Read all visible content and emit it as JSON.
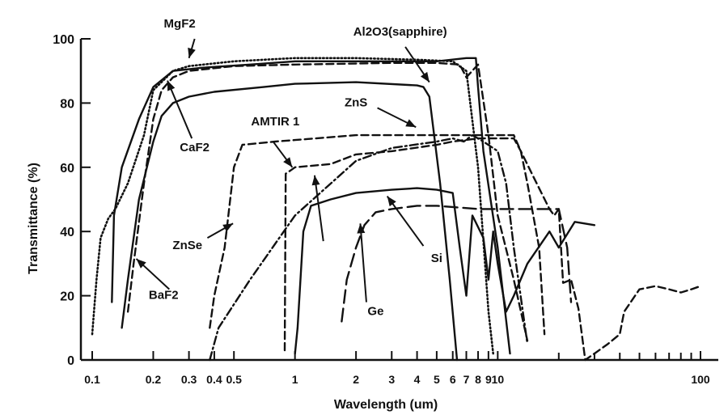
{
  "chart_data": {
    "type": "line",
    "xlabel": "Wavelength (um)",
    "ylabel": "Transmittance (%)",
    "xscale": "log",
    "xlim": [
      0.1,
      100
    ],
    "ylim": [
      0,
      100
    ],
    "grid": false,
    "legend": "none",
    "x_ticks": [
      {
        "value": 0.1,
        "label": "0.1"
      },
      {
        "value": 0.2,
        "label": "0.2"
      },
      {
        "value": 0.3,
        "label": "0.3"
      },
      {
        "value": 0.4,
        "label": "0.4"
      },
      {
        "value": 0.5,
        "label": "0.5"
      },
      {
        "value": 1,
        "label": "1"
      },
      {
        "value": 2,
        "label": "2"
      },
      {
        "value": 3,
        "label": "3"
      },
      {
        "value": 4,
        "label": "4"
      },
      {
        "value": 5,
        "label": "5"
      },
      {
        "value": 6,
        "label": "6"
      },
      {
        "value": 7,
        "label": "7"
      },
      {
        "value": 8,
        "label": "8"
      },
      {
        "value": 9,
        "label": "9"
      },
      {
        "value": 10,
        "label": "10"
      },
      {
        "value": 100,
        "label": "100"
      }
    ],
    "y_ticks": [
      {
        "value": 0,
        "label": "0"
      },
      {
        "value": 20,
        "label": "20"
      },
      {
        "value": 40,
        "label": "40"
      },
      {
        "value": 60,
        "label": "60"
      },
      {
        "value": 80,
        "label": "80"
      },
      {
        "value": 100,
        "label": "100"
      }
    ],
    "series": [
      {
        "name": "MgF2",
        "dash": "dotted",
        "points": [
          [
            0.1,
            8
          ],
          [
            0.105,
            25
          ],
          [
            0.11,
            38
          ],
          [
            0.12,
            44
          ],
          [
            0.13,
            47
          ],
          [
            0.15,
            55
          ],
          [
            0.18,
            70
          ],
          [
            0.2,
            84
          ],
          [
            0.25,
            90
          ],
          [
            0.3,
            91.5
          ],
          [
            0.5,
            93
          ],
          [
            1,
            94
          ],
          [
            2,
            94
          ],
          [
            4,
            93.5
          ],
          [
            6,
            93
          ],
          [
            7,
            90
          ],
          [
            8,
            60
          ],
          [
            9,
            15
          ],
          [
            9.5,
            2
          ]
        ]
      },
      {
        "name": "CaF2",
        "dash": "solid",
        "points": [
          [
            0.125,
            18
          ],
          [
            0.128,
            45
          ],
          [
            0.14,
            60
          ],
          [
            0.17,
            75
          ],
          [
            0.2,
            85
          ],
          [
            0.25,
            90
          ],
          [
            0.35,
            91
          ],
          [
            0.6,
            92
          ],
          [
            1,
            93
          ],
          [
            3,
            93
          ],
          [
            5,
            93
          ],
          [
            7,
            94
          ],
          [
            7.8,
            94
          ],
          [
            8,
            85
          ],
          [
            8.5,
            65
          ],
          [
            10,
            35
          ],
          [
            11.5,
            2
          ]
        ]
      },
      {
        "name": "BaF2",
        "dash": "dashed",
        "points": [
          [
            0.15,
            15
          ],
          [
            0.16,
            30
          ],
          [
            0.18,
            55
          ],
          [
            0.2,
            75
          ],
          [
            0.22,
            84
          ],
          [
            0.25,
            88
          ],
          [
            0.3,
            90
          ],
          [
            0.5,
            91.5
          ],
          [
            1,
            92
          ],
          [
            3,
            92.5
          ],
          [
            5,
            92.5
          ],
          [
            6.5,
            92
          ],
          [
            7,
            88
          ],
          [
            8,
            92
          ],
          [
            9,
            70
          ],
          [
            10,
            45
          ],
          [
            12,
            25
          ],
          [
            14,
            6
          ]
        ]
      },
      {
        "name": "Al2O3(sapphire)",
        "dash": "solid",
        "points": [
          [
            0.14,
            10
          ],
          [
            0.15,
            25
          ],
          [
            0.17,
            50
          ],
          [
            0.2,
            68
          ],
          [
            0.22,
            76
          ],
          [
            0.25,
            80
          ],
          [
            0.3,
            82
          ],
          [
            0.4,
            83.5
          ],
          [
            0.7,
            85
          ],
          [
            1,
            86
          ],
          [
            2,
            86.5
          ],
          [
            4,
            85.5
          ],
          [
            4.3,
            85
          ],
          [
            4.6,
            82
          ],
          [
            5.2,
            55
          ],
          [
            5.8,
            25
          ],
          [
            6.3,
            0
          ]
        ]
      },
      {
        "name": "ZnS",
        "dash": "dash-dot",
        "points": [
          [
            0.38,
            0
          ],
          [
            0.42,
            10
          ],
          [
            0.6,
            25
          ],
          [
            1,
            45
          ],
          [
            2,
            62
          ],
          [
            3,
            66
          ],
          [
            5,
            68
          ],
          [
            6,
            69
          ],
          [
            6.8,
            68
          ],
          [
            7.5,
            70
          ],
          [
            8.5,
            68
          ],
          [
            10,
            65
          ],
          [
            11,
            55
          ],
          [
            12,
            35
          ],
          [
            14,
            5
          ]
        ]
      },
      {
        "name": "ZnSe",
        "dash": "dashed",
        "points": [
          [
            0.38,
            10
          ],
          [
            0.4,
            20
          ],
          [
            0.45,
            35
          ],
          [
            0.5,
            60
          ],
          [
            0.55,
            67
          ],
          [
            0.8,
            68
          ],
          [
            1,
            68.5
          ],
          [
            2,
            70
          ],
          [
            3,
            70
          ],
          [
            5,
            70
          ],
          [
            7,
            70
          ],
          [
            9,
            70
          ],
          [
            12,
            70
          ],
          [
            13,
            65
          ],
          [
            14,
            55
          ],
          [
            16,
            35
          ],
          [
            17,
            8
          ]
        ]
      },
      {
        "name": "AMTIR 1",
        "dash": "dashed",
        "points": [
          [
            0.89,
            3
          ],
          [
            0.9,
            58
          ],
          [
            0.95,
            59
          ],
          [
            1,
            60
          ],
          [
            1.5,
            61
          ],
          [
            2,
            64
          ],
          [
            3,
            65
          ],
          [
            5,
            67
          ],
          [
            6,
            68
          ],
          [
            8,
            69
          ],
          [
            12,
            69
          ],
          [
            13,
            65
          ],
          [
            15,
            57
          ],
          [
            18,
            47
          ],
          [
            19,
            45
          ],
          [
            20,
            47
          ],
          [
            21,
            24
          ],
          [
            23,
            25
          ],
          [
            25,
            16
          ],
          [
            27,
            0
          ],
          [
            30,
            2
          ],
          [
            35,
            5
          ],
          [
            40,
            8
          ],
          [
            42,
            15
          ],
          [
            50,
            22
          ],
          [
            60,
            23
          ],
          [
            70,
            22
          ],
          [
            80,
            21
          ],
          [
            90,
            22
          ],
          [
            100,
            23
          ]
        ]
      },
      {
        "name": "Si",
        "dash": "solid",
        "points": [
          [
            1,
            2
          ],
          [
            1.03,
            10
          ],
          [
            1.1,
            40
          ],
          [
            1.2,
            48
          ],
          [
            1.5,
            50
          ],
          [
            2,
            52
          ],
          [
            3,
            53
          ],
          [
            4,
            53.5
          ],
          [
            5,
            53
          ],
          [
            6,
            52
          ],
          [
            6.5,
            35
          ],
          [
            7,
            20
          ],
          [
            7.5,
            45
          ],
          [
            8.5,
            38
          ],
          [
            9,
            25
          ],
          [
            9.5,
            40
          ],
          [
            10,
            30
          ],
          [
            11,
            15
          ],
          [
            12,
            20
          ],
          [
            14,
            30
          ],
          [
            18,
            40
          ],
          [
            20,
            35
          ],
          [
            24,
            43
          ],
          [
            30,
            42
          ]
        ]
      },
      {
        "name": "Ge",
        "dash": "long-dash",
        "points": [
          [
            1.7,
            12
          ],
          [
            1.8,
            25
          ],
          [
            2,
            35
          ],
          [
            2.2,
            42
          ],
          [
            2.5,
            46
          ],
          [
            3,
            47
          ],
          [
            4,
            48
          ],
          [
            5,
            48
          ],
          [
            8,
            47
          ],
          [
            10,
            47
          ],
          [
            12,
            47
          ],
          [
            16,
            47
          ],
          [
            20,
            47
          ],
          [
            22,
            35
          ],
          [
            23,
            18
          ]
        ]
      }
    ],
    "annotations": [
      {
        "text": "MgF2"
      },
      {
        "text": "Al2O3(sapphire)"
      },
      {
        "text": "ZnS"
      },
      {
        "text": "AMTIR 1"
      },
      {
        "text": "CaF2"
      },
      {
        "text": "ZnSe"
      },
      {
        "text": "BaF2"
      },
      {
        "text": "Si"
      },
      {
        "text": "Ge"
      }
    ]
  }
}
